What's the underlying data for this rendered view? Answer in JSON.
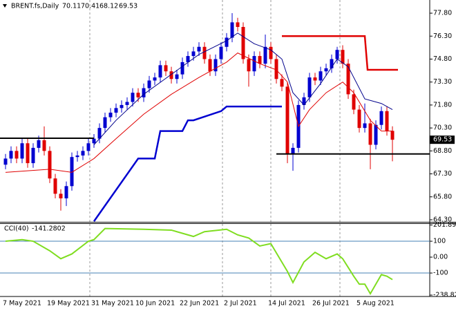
{
  "chart_data": [
    {
      "type": "candlestick",
      "symbol": "BRENT.fs,Daily",
      "categories": [
        "7 May 2021",
        null,
        null,
        null,
        null,
        null,
        null,
        null,
        "19 May 2021",
        null,
        null,
        null,
        null,
        null,
        null,
        null,
        "31 May 2021",
        null,
        null,
        null,
        null,
        null,
        null,
        null,
        "10 Jun 2021",
        null,
        null,
        null,
        null,
        null,
        null,
        null,
        "22 Jun 2021",
        null,
        null,
        null,
        null,
        null,
        null,
        null,
        "2 Jul 2021",
        null,
        null,
        null,
        null,
        null,
        null,
        null,
        "14 Jul 2021",
        null,
        null,
        null,
        null,
        null,
        null,
        null,
        "26 Jul 2021",
        null,
        null,
        null,
        null,
        null,
        null,
        null,
        "5 Aug 2021",
        null,
        null,
        null,
        null,
        null,
        null
      ],
      "open": [
        67.9,
        68.3,
        68.8,
        68.3,
        69.3,
        68.0,
        69.0,
        69.5,
        68.8,
        67.0,
        66.0,
        65.7,
        66.5,
        68.4,
        68.5,
        68.8,
        69.3,
        69.6,
        70.3,
        71.0,
        71.3,
        71.6,
        71.8,
        72.0,
        72.6,
        72.3,
        72.9,
        73.4,
        73.6,
        74.4,
        74.0,
        73.5,
        73.8,
        74.6,
        75.0,
        75.3,
        75.6,
        74.8,
        74.0,
        74.8,
        75.6,
        76.2,
        77.2,
        76.9,
        74.8,
        74.0,
        75.0,
        74.5,
        75.6,
        74.8,
        73.5,
        73.0,
        68.6,
        69.0,
        71.8,
        72.3,
        73.6,
        73.4,
        74.0,
        74.2,
        74.8,
        75.4,
        74.5,
        72.5,
        71.5,
        70.3,
        70.6,
        69.2,
        70.5,
        71.4,
        70.11
      ],
      "high": [
        68.6,
        69.1,
        69.1,
        69.6,
        69.6,
        69.3,
        69.8,
        70.4,
        69.1,
        67.3,
        66.3,
        66.8,
        68.7,
        68.8,
        69.1,
        69.6,
        69.9,
        70.6,
        71.3,
        71.6,
        71.9,
        72.1,
        72.3,
        72.9,
        72.9,
        73.2,
        73.7,
        73.9,
        74.7,
        74.7,
        74.3,
        74.1,
        74.9,
        75.3,
        75.6,
        75.9,
        75.9,
        75.1,
        75.1,
        75.9,
        76.5,
        77.8,
        77.5,
        77.2,
        75.1,
        75.3,
        75.3,
        76.4,
        75.9,
        75.1,
        73.8,
        73.3,
        69.3,
        72.1,
        72.6,
        73.9,
        73.9,
        74.3,
        74.5,
        75.1,
        75.6,
        75.7,
        74.8,
        72.8,
        71.8,
        71.9,
        70.9,
        70.8,
        71.7,
        71.7,
        70.41
      ],
      "low": [
        67.6,
        68.0,
        68.0,
        68.0,
        67.7,
        67.7,
        68.7,
        68.5,
        66.7,
        65.7,
        64.9,
        65.2,
        66.2,
        68.1,
        68.2,
        68.5,
        69.0,
        69.3,
        70.0,
        70.7,
        71.0,
        71.3,
        71.5,
        71.7,
        72.0,
        72.0,
        72.6,
        73.1,
        73.3,
        73.7,
        73.2,
        73.2,
        73.5,
        74.3,
        74.7,
        75.0,
        74.5,
        73.7,
        73.7,
        74.5,
        75.3,
        75.9,
        76.6,
        74.5,
        73.0,
        73.7,
        74.2,
        74.2,
        74.5,
        73.2,
        72.7,
        68.0,
        67.5,
        68.7,
        71.5,
        72.0,
        73.1,
        73.1,
        73.7,
        73.9,
        74.5,
        74.2,
        72.2,
        71.2,
        70.0,
        70.0,
        67.6,
        68.9,
        70.2,
        69.8,
        68.12
      ],
      "close": [
        68.3,
        68.8,
        68.3,
        69.3,
        68.0,
        69.0,
        69.5,
        68.8,
        67.0,
        66.0,
        65.7,
        66.5,
        68.4,
        68.5,
        68.8,
        69.3,
        69.6,
        70.3,
        71.0,
        71.3,
        71.6,
        71.8,
        72.0,
        72.6,
        72.3,
        72.9,
        73.4,
        73.6,
        74.4,
        74.0,
        73.5,
        73.8,
        74.6,
        75.0,
        75.3,
        75.6,
        74.8,
        74.0,
        74.8,
        75.6,
        76.2,
        77.2,
        76.9,
        74.8,
        74.0,
        75.0,
        74.5,
        75.6,
        74.8,
        73.5,
        73.0,
        68.6,
        69.0,
        71.8,
        72.3,
        73.6,
        73.4,
        74.0,
        74.2,
        74.8,
        75.4,
        74.5,
        72.5,
        71.5,
        70.3,
        70.6,
        69.2,
        70.5,
        71.4,
        70.11,
        69.53
      ],
      "up_color": "#0000d0",
      "down_color": "#e00000",
      "ylim": [
        64.21,
        78.48
      ],
      "yticks": [
        {
          "value": 77.8,
          "label": "77.80"
        },
        {
          "value": 76.3,
          "label": "76.30"
        },
        {
          "value": 74.8,
          "label": "74.80"
        },
        {
          "value": 73.3,
          "label": "73.30"
        },
        {
          "value": 71.8,
          "label": "71.80"
        },
        {
          "value": 70.3,
          "label": "70.30"
        },
        {
          "value": 68.8,
          "label": "68.80"
        },
        {
          "value": 67.3,
          "label": "67.30"
        },
        {
          "value": 65.8,
          "label": "65.80"
        },
        {
          "value": 64.3,
          "label": "64.30"
        }
      ],
      "overlays": [
        {
          "color": "#00008b",
          "width": 1,
          "points": [
            [
              16,
              69.2
            ],
            [
              20,
              70.8
            ],
            [
              25,
              72.5
            ],
            [
              30,
              73.8
            ],
            [
              35,
              75.1
            ],
            [
              40,
              76.0
            ],
            [
              42,
              76.5
            ],
            [
              45,
              75.8
            ],
            [
              48,
              75.4
            ],
            [
              50,
              74.8
            ],
            [
              52,
              72.6
            ],
            [
              54,
              71.8
            ],
            [
              57,
              73.2
            ],
            [
              60,
              74.8
            ],
            [
              62,
              74.3
            ],
            [
              65,
              72.2
            ],
            [
              68,
              71.9
            ],
            [
              70,
              71.5
            ]
          ]
        },
        {
          "color": "#e00000",
          "width": 1,
          "points": [
            [
              0,
              67.4
            ],
            [
              8,
              67.6
            ],
            [
              12,
              67.4
            ],
            [
              16,
              68.3
            ],
            [
              20,
              69.6
            ],
            [
              25,
              71.2
            ],
            [
              30,
              72.5
            ],
            [
              35,
              73.6
            ],
            [
              40,
              74.6
            ],
            [
              42,
              75.2
            ],
            [
              46,
              74.5
            ],
            [
              49,
              74.1
            ],
            [
              51,
              73.3
            ],
            [
              53,
              70.4
            ],
            [
              55,
              71.5
            ],
            [
              58,
              72.6
            ],
            [
              61,
              73.3
            ],
            [
              63,
              72.6
            ],
            [
              66,
              70.8
            ],
            [
              68,
              70.1
            ],
            [
              70,
              70.1
            ]
          ]
        },
        {
          "color": "#0000d0",
          "width": 2.5,
          "points": [
            [
              16,
              64.2
            ],
            [
              24,
              68.3
            ],
            [
              27,
              68.3
            ],
            [
              28,
              70.1
            ],
            [
              32,
              70.1
            ],
            [
              33,
              70.8
            ],
            [
              34,
              70.8
            ],
            [
              39,
              71.4
            ],
            [
              40,
              71.7
            ],
            [
              50,
              71.7
            ]
          ]
        },
        {
          "color": "#e00000",
          "width": 2.5,
          "points": [
            [
              50,
              76.3
            ],
            [
              65,
              76.3
            ],
            [
              65.5,
              74.1
            ],
            [
              71,
              74.1
            ]
          ]
        },
        {
          "color": "#000000",
          "width": 2,
          "points": [
            [
              -1,
              69.63
            ],
            [
              16,
              69.63
            ]
          ]
        },
        {
          "color": "#000000",
          "width": 2,
          "points": [
            [
              49,
              68.6
            ],
            [
              77,
              68.6
            ]
          ]
        }
      ]
    },
    {
      "type": "line",
      "name": "CCI(40)",
      "color": "#7fdd20",
      "level_color": "#4682b4",
      "levels": [
        100,
        -100
      ],
      "ylim": [
        -238.825,
        201.8937
      ],
      "yticks": [
        201.8937,
        100,
        {
          "value": 0,
          "label": "0.00"
        },
        -100,
        -238.825
      ],
      "points": [
        [
          0,
          100
        ],
        [
          3,
          110
        ],
        [
          5,
          100
        ],
        [
          8,
          40
        ],
        [
          10,
          -10
        ],
        [
          12,
          20
        ],
        [
          15,
          100
        ],
        [
          16,
          110
        ],
        [
          18,
          180
        ],
        [
          25,
          175
        ],
        [
          30,
          170
        ],
        [
          34,
          130
        ],
        [
          36,
          160
        ],
        [
          40,
          175
        ],
        [
          42,
          140
        ],
        [
          44,
          120
        ],
        [
          46,
          70
        ],
        [
          48,
          85
        ],
        [
          51,
          -90
        ],
        [
          52,
          -160
        ],
        [
          54,
          -30
        ],
        [
          56,
          30
        ],
        [
          58,
          -10
        ],
        [
          60,
          20
        ],
        [
          61,
          -10
        ],
        [
          63,
          -120
        ],
        [
          64,
          -170
        ],
        [
          65,
          -170
        ],
        [
          66,
          -230
        ],
        [
          67,
          -170
        ],
        [
          68,
          -110
        ],
        [
          69,
          -120
        ],
        [
          70,
          -141.2802
        ]
      ]
    }
  ]
}
